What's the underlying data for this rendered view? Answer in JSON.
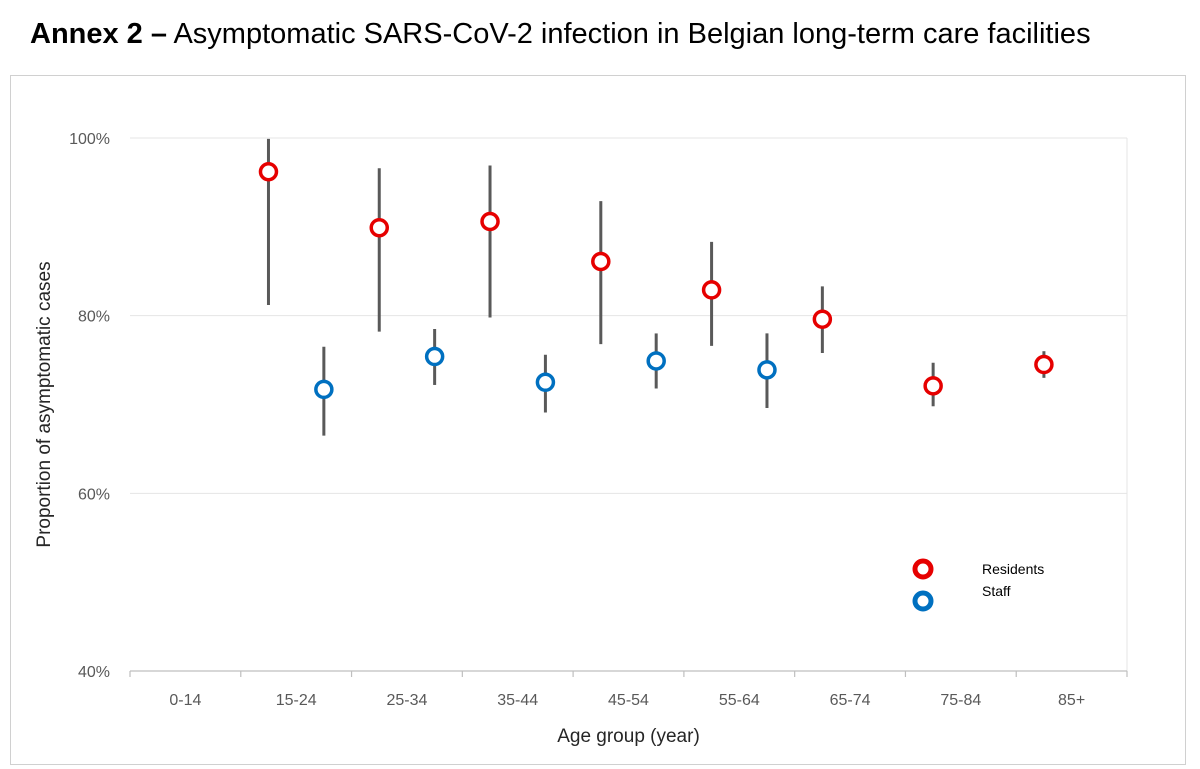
{
  "heading": {
    "bold": "Annex 2 –",
    "rest": "Asymptomatic SARS-CoV-2 infection in Belgian long-term care facilities"
  },
  "chart_data": {
    "type": "scatter",
    "categories": [
      "0-14",
      "15-24",
      "25-34",
      "35-44",
      "45-54",
      "55-64",
      "65-74",
      "75-84",
      "85+"
    ],
    "xlabel": "Age group (year)",
    "ylabel": "Proportion of asymptomatic cases",
    "ylim": [
      40,
      100
    ],
    "yticks": [
      "40%",
      "60%",
      "80%",
      "100%"
    ],
    "ytick_values": [
      40,
      60,
      80,
      100
    ],
    "grid": true,
    "legend": "right",
    "series": [
      {
        "name": "Residents",
        "color": "#e60000",
        "points": [
          {
            "category": "15-24",
            "value": 96.2,
            "low": 81.2,
            "high": 99.9
          },
          {
            "category": "25-34",
            "value": 89.9,
            "low": 78.2,
            "high": 96.6
          },
          {
            "category": "35-44",
            "value": 90.6,
            "low": 79.8,
            "high": 96.9
          },
          {
            "category": "45-54",
            "value": 86.1,
            "low": 76.8,
            "high": 92.9
          },
          {
            "category": "55-64",
            "value": 82.9,
            "low": 76.6,
            "high": 88.3
          },
          {
            "category": "65-74",
            "value": 79.6,
            "low": 75.8,
            "high": 83.3
          },
          {
            "category": "75-84",
            "value": 72.1,
            "low": 69.8,
            "high": 74.7
          },
          {
            "category": "85+",
            "value": 74.5,
            "low": 73.0,
            "high": 76.0
          }
        ]
      },
      {
        "name": "Staff",
        "color": "#0070c0",
        "points": [
          {
            "category": "15-24",
            "value": 71.7,
            "low": 66.5,
            "high": 76.5
          },
          {
            "category": "25-34",
            "value": 75.4,
            "low": 72.2,
            "high": 78.5
          },
          {
            "category": "35-44",
            "value": 72.5,
            "low": 69.1,
            "high": 75.6
          },
          {
            "category": "45-54",
            "value": 74.9,
            "low": 71.8,
            "high": 78.0
          },
          {
            "category": "55-64",
            "value": 73.9,
            "low": 69.6,
            "high": 78.0
          }
        ]
      }
    ]
  }
}
